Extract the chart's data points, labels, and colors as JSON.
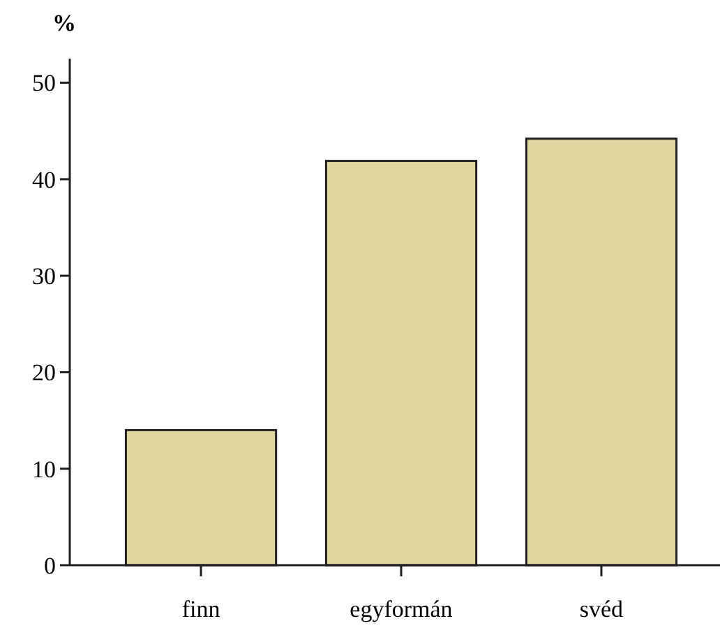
{
  "chart_data": {
    "type": "bar",
    "ylabel": "%",
    "categories": [
      "finn",
      "egyformán",
      "svéd"
    ],
    "values": [
      14,
      41.9,
      44.2
    ],
    "color": "#e0d6a0",
    "ylim": [
      0,
      52.5
    ],
    "yticks": [
      0,
      10,
      20,
      30,
      40,
      50
    ],
    "grid": false
  }
}
